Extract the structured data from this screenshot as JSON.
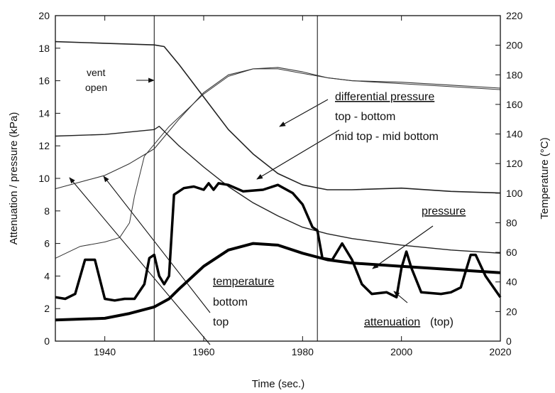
{
  "chart_data": {
    "type": "line",
    "xlabel": "Time (sec.)",
    "ylabel": "Attenuation / pressure (kPa)",
    "y2label": "Temperature (°C)",
    "xlim": [
      1930,
      2020
    ],
    "xticks": [
      1940,
      1960,
      1980,
      2000,
      2020
    ],
    "ylim": [
      0,
      20
    ],
    "yticks": [
      0,
      2,
      4,
      6,
      8,
      10,
      12,
      14,
      16,
      18,
      20
    ],
    "y2lim": [
      0,
      220
    ],
    "y2ticks": [
      0,
      20,
      40,
      60,
      80,
      100,
      120,
      140,
      160,
      180,
      200,
      220
    ],
    "vlines": [
      1950,
      1983
    ],
    "series": [
      {
        "color": "#222222",
        "width": 1.6,
        "x": [
          1930,
          1940,
          1950,
          1952,
          1955,
          1960,
          1965,
          1970,
          1975,
          1980,
          1985,
          1990,
          2000,
          2010,
          2020
        ],
        "values": [
          18.4,
          18.3,
          18.2,
          18.1,
          17.0,
          15.0,
          13.0,
          11.5,
          10.3,
          9.6,
          9.3,
          9.3,
          9.4,
          9.2,
          9.1
        ]
      },
      {
        "color": "#222222",
        "width": 1.4,
        "x": [
          1930,
          1940,
          1950,
          1951,
          1955,
          1960,
          1965,
          1970,
          1975,
          1980,
          1985,
          1990,
          2000,
          2010,
          2020
        ],
        "values": [
          12.6,
          12.7,
          13.0,
          13.2,
          12.0,
          10.7,
          9.5,
          8.5,
          7.7,
          7.0,
          6.6,
          6.3,
          5.9,
          5.6,
          5.4
        ]
      },
      {
        "color": "#333333",
        "width": 1.1,
        "axis": "y2",
        "x": [
          1930,
          1940,
          1945,
          1950,
          1955,
          1960,
          1965,
          1970,
          1975,
          1980,
          1985,
          1990,
          2000,
          2010,
          2020
        ],
        "values": [
          103,
          112,
          120,
          130,
          150,
          168,
          180,
          184,
          185,
          182,
          178,
          176,
          175,
          173,
          171
        ]
      },
      {
        "color": "#333333",
        "width": 1.0,
        "axis": "y2",
        "x": [
          1930,
          1935,
          1940,
          1943,
          1945,
          1946,
          1948,
          1950,
          1953,
          1960,
          1965,
          1970,
          1975,
          1980,
          1985,
          1990,
          2000,
          2010,
          2020
        ],
        "values": [
          56,
          64,
          67,
          70,
          80,
          98,
          125,
          133,
          145,
          167,
          179,
          184,
          184,
          181,
          178,
          176,
          174,
          172,
          170
        ]
      },
      {
        "color": "#000000",
        "width": 4,
        "x": [
          1930,
          1940,
          1945,
          1950,
          1953,
          1955,
          1960,
          1965,
          1970,
          1975,
          1980,
          1985,
          1990,
          2000,
          2010,
          2020
        ],
        "values": [
          1.3,
          1.4,
          1.7,
          2.1,
          2.6,
          3.2,
          4.6,
          5.6,
          6.0,
          5.9,
          5.4,
          5.0,
          4.8,
          4.6,
          4.4,
          4.2
        ]
      },
      {
        "color": "#000000",
        "width": 3.5,
        "x": [
          1930,
          1932,
          1934,
          1936,
          1938,
          1940,
          1942,
          1944,
          1946,
          1948,
          1949,
          1950,
          1951,
          1952,
          1953,
          1954,
          1956,
          1958,
          1960,
          1961,
          1962,
          1963,
          1965,
          1968,
          1972,
          1975,
          1978,
          1980,
          1982,
          1983,
          1984,
          1986,
          1988,
          1990,
          1992,
          1994,
          1997,
          1999,
          2000,
          2001,
          2002,
          2004,
          2008,
          2010,
          2012,
          2014,
          2015,
          2017,
          2020
        ],
        "values": [
          2.7,
          2.6,
          2.9,
          5.0,
          5.0,
          2.6,
          2.5,
          2.6,
          2.6,
          3.5,
          5.1,
          5.3,
          4.0,
          3.5,
          4.0,
          9.0,
          9.4,
          9.5,
          9.3,
          9.7,
          9.3,
          9.7,
          9.6,
          9.2,
          9.3,
          9.6,
          9.1,
          8.4,
          7.0,
          6.8,
          5.1,
          5.0,
          6.0,
          5.0,
          3.5,
          2.9,
          3.0,
          2.7,
          4.5,
          5.5,
          4.5,
          3.0,
          2.9,
          3.0,
          3.3,
          5.3,
          5.3,
          4.0,
          2.7
        ]
      }
    ],
    "annotations": [
      {
        "text": "vent",
        "underline": false
      },
      {
        "text": "open",
        "underline": false
      },
      {
        "text": "differential pressure",
        "underline": true
      },
      {
        "text": "top - bottom",
        "underline": false
      },
      {
        "text": "mid top - mid bottom",
        "underline": false
      },
      {
        "text": "pressure",
        "underline": true
      },
      {
        "text": "temperature",
        "underline": true
      },
      {
        "text": "bottom",
        "underline": false
      },
      {
        "text": "top",
        "underline": false
      },
      {
        "text": "attenuation",
        "underline": true
      },
      {
        "text": "(top)",
        "underline": false
      }
    ]
  }
}
